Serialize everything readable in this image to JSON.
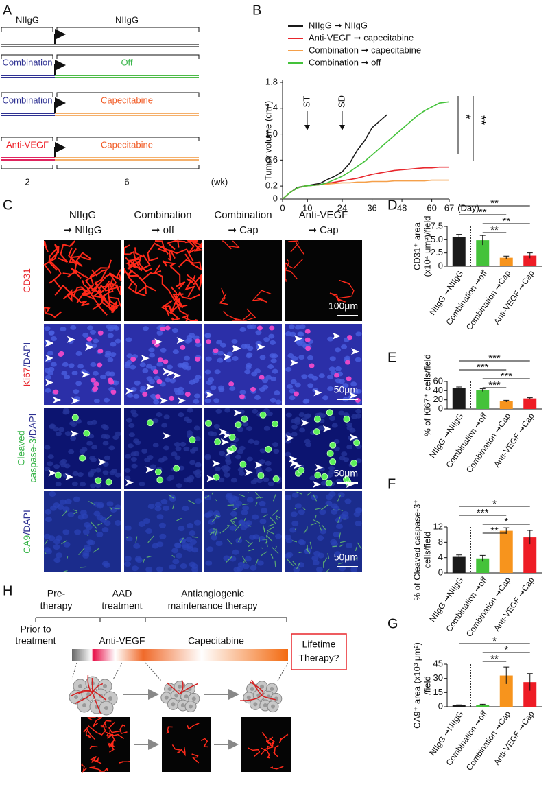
{
  "chart_data": [
    {
      "type": "line",
      "label": "B",
      "x": [
        0,
        3,
        6,
        9,
        12,
        15,
        18,
        21,
        24,
        27,
        30,
        33,
        36,
        39,
        42,
        45,
        48,
        51,
        54,
        57,
        60,
        63,
        67
      ],
      "xlim": [
        0,
        67
      ],
      "xticks": [
        0,
        10,
        24,
        36,
        48,
        60,
        67
      ],
      "ylim": [
        0,
        1.8
      ],
      "yticks": [
        0,
        0.2,
        0.6,
        {
          "value": 1,
          "label": "1.0"
        },
        1.4,
        1.8
      ],
      "y_label": "Tumor volume (cm³)",
      "x_label": "(Day)",
      "annotations": [
        "ST",
        "SD",
        "*",
        "**"
      ],
      "series": [
        {
          "name": "NIIgG ➞ NIIgG",
          "color": "#1a1a1a",
          "values": [
            0,
            0.1,
            0.18,
            0.2,
            0.22,
            0.24,
            0.3,
            0.35,
            0.42,
            0.55,
            0.75,
            0.9,
            1.1,
            1.2,
            1.3,
            null,
            null,
            null,
            null,
            null,
            null,
            null,
            null
          ]
        },
        {
          "name": "Anti-VEGF ➞ capecitabine",
          "color": "#e8262c",
          "values": [
            0,
            0.1,
            0.17,
            0.2,
            0.21,
            0.22,
            0.24,
            0.26,
            0.28,
            0.3,
            0.32,
            0.35,
            0.38,
            0.4,
            0.42,
            0.44,
            0.45,
            0.46,
            0.47,
            0.48,
            0.48,
            0.49,
            0.49
          ]
        },
        {
          "name": "Combination ➞ capecitabine",
          "color": "#f5a04a",
          "values": [
            0,
            0.1,
            0.17,
            0.2,
            0.21,
            0.22,
            0.23,
            0.24,
            0.25,
            0.25,
            0.26,
            0.26,
            0.27,
            0.27,
            0.27,
            0.28,
            0.28,
            0.28,
            0.28,
            0.28,
            0.29,
            0.29,
            0.29
          ]
        },
        {
          "name": "Combination ➞ off",
          "color": "#44c23a",
          "values": [
            0,
            0.1,
            0.17,
            0.2,
            0.21,
            0.22,
            0.25,
            0.3,
            0.35,
            0.42,
            0.5,
            0.58,
            0.68,
            0.78,
            0.88,
            0.98,
            1.08,
            1.18,
            1.28,
            1.36,
            1.42,
            1.48,
            1.5
          ]
        }
      ]
    },
    {
      "type": "bar",
      "label": "D",
      "categories": [
        "NIIgG ➞NIIgG",
        "Combination ➞off",
        "Combination ➞Cap",
        "Anti-VEGF ➞Cap"
      ],
      "colors": [
        "#1a1a1a",
        "#44c23a",
        "#f7941d",
        "#ee1c25"
      ],
      "values": [
        5.5,
        4.9,
        1.6,
        2.0
      ],
      "errors": [
        0.5,
        0.9,
        0.3,
        0.5
      ],
      "ylim": [
        0,
        7.5
      ],
      "yticks": [
        0,
        2.5,
        {
          "value": 5,
          "label": "5.0"
        },
        7.5
      ],
      "y_label": [
        "CD31⁺ area",
        "(x10⁴ μm²)/field"
      ],
      "annotations": [
        "**",
        "**",
        "**",
        "**"
      ]
    },
    {
      "type": "bar",
      "label": "E",
      "categories": [
        "NIIgG ➞NIIgG",
        "Combination ➞off",
        "Combination ➞Cap",
        "Anti-VEGF ➞Cap"
      ],
      "colors": [
        "#1a1a1a",
        "#44c23a",
        "#f7941d",
        "#ee1c25"
      ],
      "values": [
        45,
        41,
        17,
        23
      ],
      "errors": [
        3,
        3,
        2,
        1.5
      ],
      "ylim": [
        0,
        60
      ],
      "yticks": [
        0,
        20,
        40,
        60
      ],
      "y_label": [
        "% of Ki67⁺ cells/field"
      ],
      "annotations": [
        "***",
        "***",
        "***",
        "***"
      ]
    },
    {
      "type": "bar",
      "label": "F",
      "categories": [
        "NIIgG ➞NIIgG",
        "Combination ➞off",
        "Combination ➞Cap",
        "Anti-VEGF ➞Cap"
      ],
      "colors": [
        "#1a1a1a",
        "#44c23a",
        "#f7941d",
        "#ee1c25"
      ],
      "values": [
        4.2,
        3.8,
        11,
        9.3
      ],
      "errors": [
        0.5,
        0.8,
        0.8,
        1.8
      ],
      "ylim": [
        0,
        12
      ],
      "yticks": [
        0,
        4,
        8,
        12
      ],
      "y_label": [
        "% of Cleaved caspase-3⁺",
        "cells/field"
      ],
      "annotations": [
        "*",
        "***",
        "*",
        "**"
      ]
    },
    {
      "type": "bar",
      "label": "G",
      "categories": [
        "NIIgG ➞NIIgG",
        "Combination ➞off",
        "Combination ➞Cap",
        "Anti-VEGF ➞Cap"
      ],
      "colors": [
        "#1a1a1a",
        "#44c23a",
        "#f7941d",
        "#ee1c25"
      ],
      "values": [
        1.5,
        2,
        33,
        26
      ],
      "errors": [
        0.5,
        0.6,
        9,
        9
      ],
      "ylim": [
        0,
        45
      ],
      "yticks": [
        0,
        15,
        30,
        45
      ],
      "y_label": [
        "CA9⁺ area (x10³ μm²)",
        "/field"
      ],
      "annotations": [
        "*",
        "*",
        "**"
      ]
    }
  ],
  "panels": {
    "A": {
      "label": "A",
      "header": [
        "NIIgG",
        "NIIgG"
      ],
      "rows": [
        {
          "left": "Combination",
          "right": "Off"
        },
        {
          "left": "Combination",
          "right": "Capecitabine"
        },
        {
          "left": "Anti-VEGF",
          "right": "Capecitabine"
        }
      ],
      "axis": [
        "2",
        "6",
        "(wk)"
      ]
    },
    "C": {
      "label": "C",
      "columns": [
        [
          "NIIgG",
          "➞ NIIgG"
        ],
        [
          "Combination",
          "➞ off"
        ],
        [
          "Combination",
          "➞ Cap"
        ],
        [
          "Anti-VEGF",
          "➞ Cap"
        ]
      ],
      "rows": [
        [
          "CD31"
        ],
        [
          "Ki67",
          "/DAPI"
        ],
        [
          "Cleaved",
          "caspase-3",
          "/DAPI"
        ],
        [
          "CA9",
          "/DAPI"
        ]
      ],
      "scale_bars": [
        "100μm",
        "50μm",
        "50μm",
        "50μm"
      ]
    },
    "H": {
      "label": "H",
      "phases": [
        [
          "Pre-",
          "therapy"
        ],
        [
          "AAD",
          "treatment"
        ],
        [
          "Antiangiogenic",
          "maintenance therapy"
        ]
      ],
      "stages": [
        [
          "Prior to",
          "treatment"
        ],
        [
          "Anti-VEGF"
        ],
        [
          "Capecitabine"
        ]
      ],
      "box": [
        "Lifetime",
        "Therapy?"
      ]
    }
  }
}
